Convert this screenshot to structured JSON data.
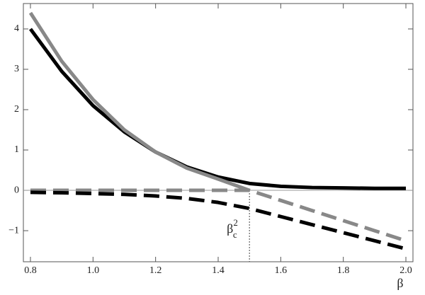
{
  "chart_data": {
    "type": "line",
    "x": [
      0.8,
      0.9,
      1.0,
      1.1,
      1.2,
      1.3,
      1.4,
      1.5,
      1.6,
      1.7,
      1.8,
      1.9,
      2.0
    ],
    "series": [
      {
        "color": "#000000",
        "dashed": false,
        "values": [
          4.0,
          2.95,
          2.1,
          1.45,
          0.95,
          0.58,
          0.33,
          0.17,
          0.1,
          0.07,
          0.06,
          0.05,
          0.05
        ]
      },
      {
        "color": "#888888",
        "dashed": false,
        "values": [
          4.4,
          3.2,
          2.25,
          1.5,
          0.95,
          0.55,
          0.28,
          0.0,
          null,
          null,
          null,
          null,
          null
        ]
      },
      {
        "color": "#888888",
        "dashed": true,
        "values": [
          0,
          0,
          0,
          0,
          0,
          0,
          0,
          0,
          -0.25,
          -0.5,
          -0.75,
          -1.0,
          -1.25
        ]
      },
      {
        "color": "#000000",
        "dashed": true,
        "values": [
          -0.05,
          -0.06,
          -0.08,
          -0.1,
          -0.14,
          -0.2,
          -0.3,
          -0.45,
          -0.65,
          -0.85,
          -1.05,
          -1.25,
          -1.45
        ]
      }
    ],
    "x_label": "β",
    "annotation": {
      "text": "β",
      "sub": "c",
      "sup": "2",
      "x": 1.5
    },
    "xlim": [
      0.7774,
      2.0226
    ],
    "ylim": [
      -1.77,
      4.63
    ],
    "xticks": [
      0.8,
      {
        "value": 1.0,
        "label": "1.0"
      },
      1.2,
      1.4,
      1.6,
      1.8,
      {
        "value": 2.0,
        "label": "2.0"
      }
    ],
    "yticks": [
      {
        "value": -1,
        "label": "−1"
      },
      0,
      1,
      2,
      3,
      4
    ]
  }
}
